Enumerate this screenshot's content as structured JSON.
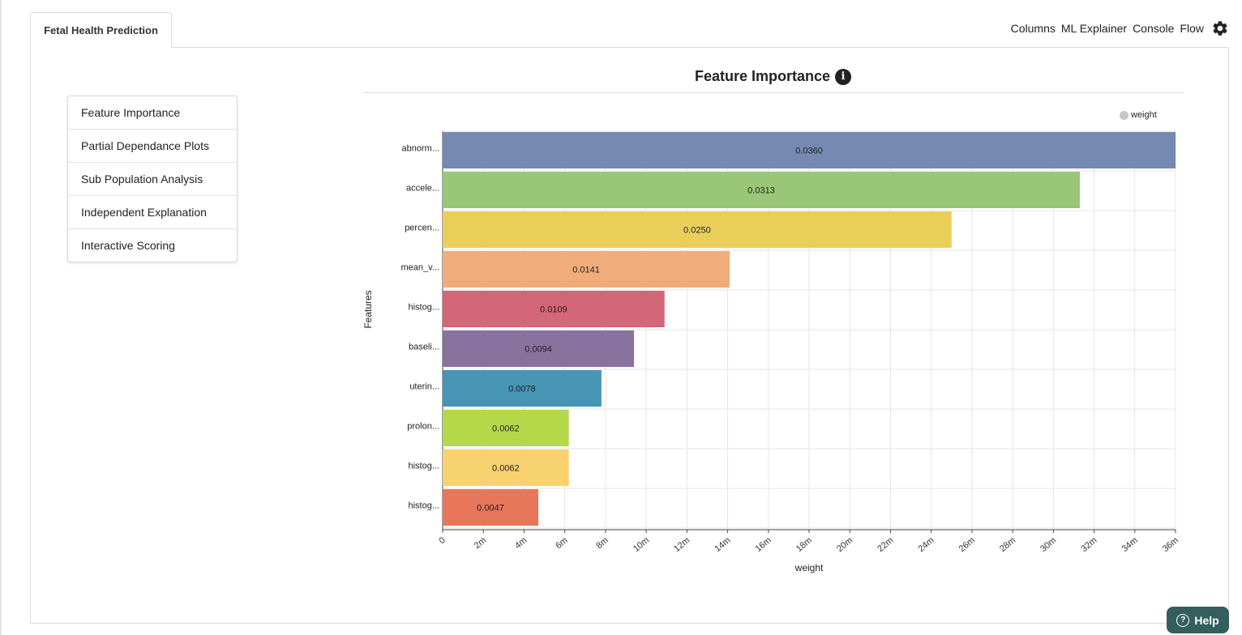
{
  "tab": {
    "label": "Fetal Health Prediction"
  },
  "nav": {
    "columns": "Columns",
    "ml_explainer": "ML Explainer",
    "console": "Console",
    "flow": "Flow"
  },
  "menu": {
    "items": [
      "Feature Importance",
      "Partial Dependance Plots",
      "Sub Population Analysis",
      "Independent Explanation",
      "Interactive Scoring"
    ]
  },
  "chart_title": "Feature Importance",
  "legend": {
    "label": "weight",
    "color": "#c7c7c7"
  },
  "help": {
    "label": "Help"
  },
  "chart_data": {
    "type": "bar",
    "orientation": "horizontal",
    "categories": [
      "abnorm...",
      "accele...",
      "percen...",
      "mean_v...",
      "histog...",
      "baseli...",
      "uterin...",
      "prolon...",
      "histog...",
      "histog..."
    ],
    "values": [
      0.036,
      0.0313,
      0.025,
      0.0141,
      0.0109,
      0.0094,
      0.0078,
      0.0062,
      0.0062,
      0.0047
    ],
    "value_labels": [
      "0.0360",
      "0.0313",
      "0.0250",
      "0.0141",
      "0.0109",
      "0.0094",
      "0.0078",
      "0.0062",
      "0.0062",
      "0.0047"
    ],
    "colors": [
      "#7589b1",
      "#9ac677",
      "#e9cf5a",
      "#f0ad7b",
      "#d36677",
      "#8a729f",
      "#4795b4",
      "#b5d84a",
      "#f7d26e",
      "#e8765a"
    ],
    "xlabel": "weight",
    "ylabel": "Features",
    "xlim": [
      0,
      0.036
    ],
    "x_ticks": [
      "0",
      "2m",
      "4m",
      "6m",
      "8m",
      "10m",
      "12m",
      "14m",
      "16m",
      "18m",
      "20m",
      "22m",
      "24m",
      "26m",
      "28m",
      "30m",
      "32m",
      "34m",
      "36m"
    ],
    "grid": true,
    "legend_position": "top-right"
  }
}
